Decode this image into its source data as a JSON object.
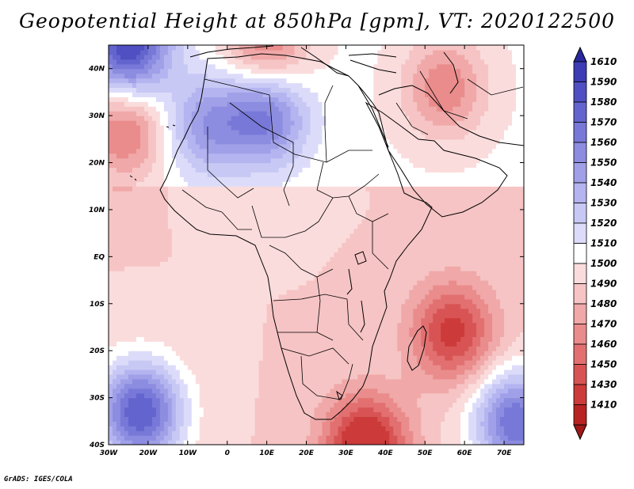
{
  "title": "Geopotential Height at 850hPa [gpm], VT: 2020122500",
  "credit": "GrADS: IGES/COLA",
  "map": {
    "variable": "Geopotential Height at 850hPa",
    "units": "gpm",
    "valid_time": "2020122500",
    "lon_range": [
      -30,
      75
    ],
    "lat_range": [
      -40,
      45
    ],
    "x_ticks": [
      {
        "value": -30,
        "label": "30W"
      },
      {
        "value": -20,
        "label": "20W"
      },
      {
        "value": -10,
        "label": "10W"
      },
      {
        "value": 0,
        "label": "0"
      },
      {
        "value": 10,
        "label": "10E"
      },
      {
        "value": 20,
        "label": "20E"
      },
      {
        "value": 30,
        "label": "30E"
      },
      {
        "value": 40,
        "label": "40E"
      },
      {
        "value": 50,
        "label": "50E"
      },
      {
        "value": 60,
        "label": "60E"
      },
      {
        "value": 70,
        "label": "70E"
      }
    ],
    "y_ticks": [
      {
        "value": 40,
        "label": "40N"
      },
      {
        "value": 30,
        "label": "30N"
      },
      {
        "value": 20,
        "label": "20N"
      },
      {
        "value": 10,
        "label": "10N"
      },
      {
        "value": 0,
        "label": "EQ"
      },
      {
        "value": -10,
        "label": "10S"
      },
      {
        "value": -20,
        "label": "20S"
      },
      {
        "value": -30,
        "label": "30S"
      },
      {
        "value": -40,
        "label": "40S"
      }
    ],
    "field_features": [
      {
        "name": "atlantic-high-north-low",
        "lon": -26,
        "lat": 27,
        "value": 1455
      },
      {
        "name": "sahara-high",
        "lon": 10,
        "lat": 30,
        "value": 1560
      },
      {
        "name": "sahara-high-west",
        "lon": -5,
        "lat": 28,
        "value": 1545
      },
      {
        "name": "south-atlantic-high",
        "lon": -22,
        "lat": -33,
        "value": 1590
      },
      {
        "name": "mozambique-low",
        "lon": 57,
        "lat": -16,
        "value": 1445
      },
      {
        "name": "southern-trough",
        "lon": 35,
        "lat": -40,
        "value": 1430
      },
      {
        "name": "middle-east-low",
        "lon": 55,
        "lat": 36,
        "value": 1460
      },
      {
        "name": "mediterranean-low",
        "lon": 10,
        "lat": 45,
        "value": 1455
      },
      {
        "name": "indian-ocean-high",
        "lon": 73,
        "lat": -35,
        "value": 1580
      },
      {
        "name": "northwest-atlantic-high",
        "lon": -25,
        "lat": 45,
        "value": 1590
      }
    ]
  },
  "colorbar": {
    "levels": [
      1610,
      1590,
      1580,
      1570,
      1560,
      1550,
      1540,
      1530,
      1520,
      1510,
      1500,
      1490,
      1480,
      1470,
      1460,
      1450,
      1430,
      1410
    ],
    "colors": [
      "#3c3cb4",
      "#5050c2",
      "#6464ce",
      "#7878d8",
      "#8c8ce0",
      "#a0a0e8",
      "#b4b4f0",
      "#c8c8f5",
      "#dcdcfa",
      "#ffffff",
      "#fbdcdc",
      "#f6c4c4",
      "#f0a8a8",
      "#ea8c8c",
      "#e27070",
      "#d85454",
      "#cc3a3a",
      "#b82222"
    ],
    "top_color": "#28289c",
    "bottom_color": "#a01818"
  }
}
